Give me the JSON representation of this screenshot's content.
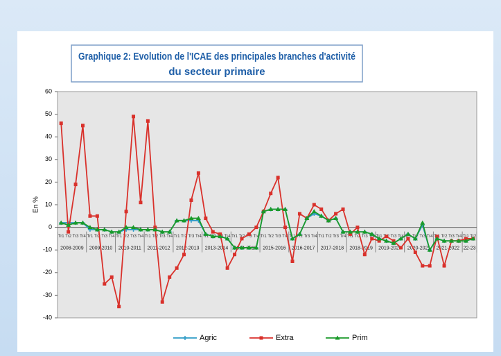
{
  "chart_data": {
    "type": "line",
    "title": [
      "Graphique 2: Evolution de l'ICAE des principales branches d'activité",
      "du secteur primaire"
    ],
    "y_label": "En %",
    "categories": [
      "Tr1",
      "Tr2",
      "Tr3",
      "Tr4",
      "Tr1",
      "Tr2",
      "Tr3",
      "Tr4",
      "Tr1",
      "Tr2",
      "Tr3",
      "Tr4",
      "Tr1",
      "Tr2",
      "Tr3",
      "Tr4",
      "Tr1",
      "Tr2",
      "Tr3",
      "Tr4",
      "Tr1",
      "Tr2",
      "Tr3",
      "Tr4",
      "Tr1",
      "Tr2",
      "Tr3",
      "Tr4",
      "Tr1",
      "Tr2",
      "Tr3",
      "Tr4",
      "Tr1",
      "Tr2",
      "Tr3",
      "Tr4",
      "Tr1",
      "Tr2",
      "Tr3",
      "Tr4",
      "Tr1",
      "Tr2",
      "Tr3",
      "Tr4",
      "Tr1",
      "Tr2",
      "Tr3",
      "Tr4",
      "Tr1",
      "Tr2",
      "Tr3",
      "Tr4",
      "Tr1",
      "Tr2",
      "Tr3",
      "Tr4",
      "Tr1",
      "Tr2"
    ],
    "groups": [
      "2008-2009",
      "2009-2010",
      "2010-2011",
      "2011-2012",
      "2012-2013",
      "2013-2014",
      "2014-2015",
      "2015-2016",
      "2016-2017",
      "2017-2018",
      "2018-2019",
      "2019-2020",
      "2020-2021",
      "2021-2022",
      "22-23"
    ],
    "series": [
      {
        "name": "Agric",
        "color": "#2e9bc6",
        "marker": "plus",
        "values": [
          2,
          2,
          2,
          2,
          -1,
          -1,
          -1,
          -2,
          -2,
          -1,
          -1,
          -1,
          -1,
          -1,
          -2,
          -2,
          3,
          3,
          3,
          3,
          -3,
          -4,
          -4,
          -5,
          -9,
          -9,
          -9,
          -9,
          7,
          8,
          8,
          8,
          -5,
          -3,
          4,
          6,
          5,
          3,
          4,
          -2,
          -2,
          -2,
          -2,
          -3,
          -5,
          -6,
          -7,
          -5,
          -3,
          -5,
          1,
          -10,
          -5,
          -6,
          -6,
          -6,
          -6,
          -5
        ]
      },
      {
        "name": "Extra",
        "color": "#d9312b",
        "marker": "square",
        "values": [
          46,
          -2,
          19,
          45,
          5,
          5,
          -25,
          -22,
          -35,
          7,
          49,
          11,
          47,
          0,
          -33,
          -22,
          -18,
          -12,
          12,
          24,
          4,
          -2,
          -3,
          -18,
          -12,
          -5,
          -3,
          0,
          7,
          15,
          22,
          0,
          -15,
          6,
          4,
          10,
          8,
          3,
          6,
          8,
          -3,
          0,
          -12,
          -5,
          -6,
          -4,
          -6,
          -9,
          -5,
          -11,
          -17,
          -17,
          -4,
          -17,
          -6,
          -6,
          -5,
          -5
        ]
      },
      {
        "name": "Prim",
        "color": "#1a9a2a",
        "marker": "triangle",
        "values": [
          2,
          1,
          2,
          2,
          0,
          -1,
          -1,
          -2,
          -2,
          0,
          0,
          -1,
          -1,
          -1,
          -2,
          -2,
          3,
          3,
          4,
          4,
          -3,
          -4,
          -4,
          -5,
          -9,
          -9,
          -9,
          -9,
          7,
          8,
          8,
          8,
          -5,
          -3,
          4,
          7,
          5,
          3,
          4,
          -2,
          -2,
          -2,
          -2,
          -3,
          -5,
          -6,
          -7,
          -5,
          -3,
          -5,
          2,
          -10,
          -5,
          -6,
          -6,
          -6,
          -6,
          -5
        ]
      }
    ],
    "ylim": [
      -40,
      60
    ],
    "yticks": [
      -40,
      -30,
      -20,
      -10,
      0,
      10,
      20,
      30,
      40,
      50,
      60
    ],
    "legend": "bottom"
  }
}
